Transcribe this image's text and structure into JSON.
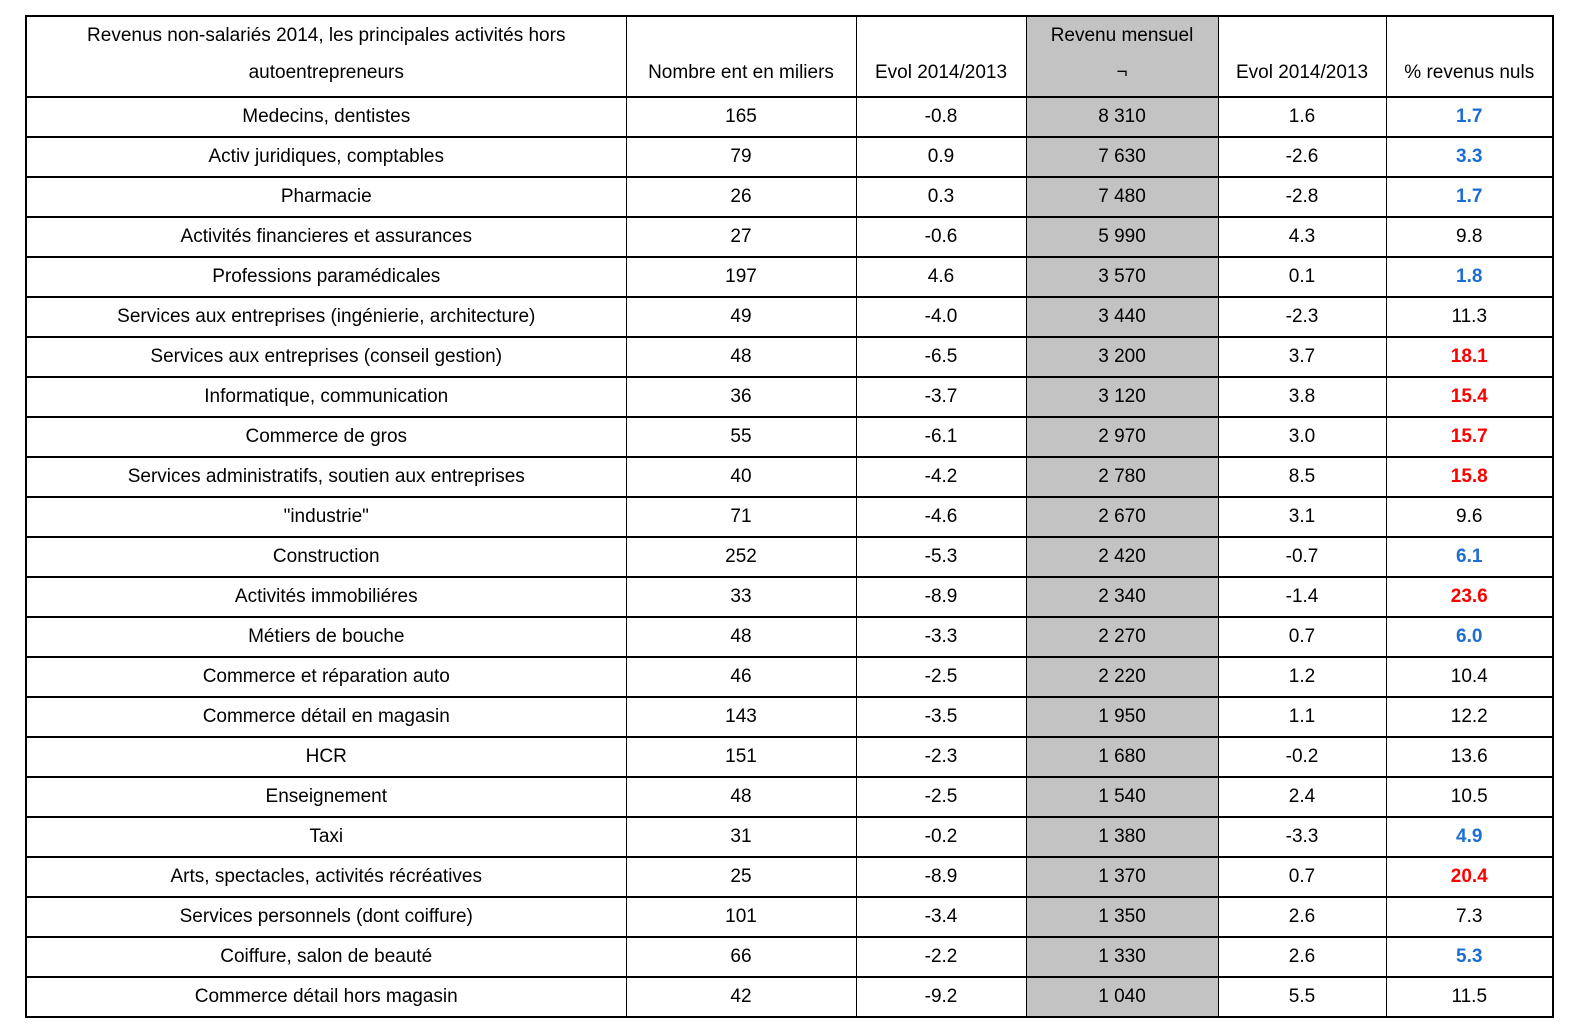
{
  "header": {
    "activity": "Revenus non-salariés 2014, les principales activités hors autoentrepreneurs",
    "nombre": "Nombre ent en miliers",
    "evol1": "Evol 2014/2013",
    "revenu_line1": "Revenu mensuel",
    "revenu_line2": "¬",
    "evol2": "Evol 2014/2013",
    "pct": "% revenus nuls"
  },
  "colors": {
    "highlight_bg": "#c3c3c3",
    "pct_blue": "#1d6ed2",
    "pct_red": "#fe0000",
    "text": "#000000",
    "border": "#000000"
  },
  "chart_data": {
    "type": "table",
    "title": "Revenus non-salariés 2014, les principales activités hors autoentrepreneurs",
    "columns": [
      "Revenus non-salariés 2014, les principales activités hors autoentrepreneurs",
      "Nombre ent en miliers",
      "Evol 2014/2013",
      "Revenu mensuel ¬",
      "Evol 2014/2013",
      "% revenus nuls"
    ],
    "highlight_column": "Revenu mensuel ¬",
    "rows": [
      [
        "Medecins, dentistes",
        "165",
        "-0.8",
        "8 310",
        "1.6",
        "1.7"
      ],
      [
        "Activ juridiques, comptables",
        "79",
        "0.9",
        "7 630",
        "-2.6",
        "3.3"
      ],
      [
        "Pharmacie",
        "26",
        "0.3",
        "7 480",
        "-2.8",
        "1.7"
      ],
      [
        "Activités financieres et assurances",
        "27",
        "-0.6",
        "5 990",
        "4.3",
        "9.8"
      ],
      [
        "Professions paramédicales",
        "197",
        "4.6",
        "3 570",
        "0.1",
        "1.8"
      ],
      [
        "Services aux entreprises (ingénierie, architecture)",
        "49",
        "-4.0",
        "3 440",
        "-2.3",
        "11.3"
      ],
      [
        "Services aux entreprises (conseil gestion)",
        "48",
        "-6.5",
        "3 200",
        "3.7",
        "18.1"
      ],
      [
        "Informatique, communication",
        "36",
        "-3.7",
        "3 120",
        "3.8",
        "15.4"
      ],
      [
        "Commerce de gros",
        "55",
        "-6.1",
        "2 970",
        "3.0",
        "15.7"
      ],
      [
        "Services administratifs, soutien aux entreprises",
        "40",
        "-4.2",
        "2 780",
        "8.5",
        "15.8"
      ],
      [
        "\"industrie\"",
        "71",
        "-4.6",
        "2 670",
        "3.1",
        "9.6"
      ],
      [
        "Construction",
        "252",
        "-5.3",
        "2 420",
        "-0.7",
        "6.1"
      ],
      [
        "Activités immobiliéres",
        "33",
        "-8.9",
        "2 340",
        "-1.4",
        "23.6"
      ],
      [
        "Métiers de bouche",
        "48",
        "-3.3",
        "2 270",
        "0.7",
        "6.0"
      ],
      [
        "Commerce et réparation auto",
        "46",
        "-2.5",
        "2 220",
        "1.2",
        "10.4"
      ],
      [
        "Commerce détail en magasin",
        "143",
        "-3.5",
        "1 950",
        "1.1",
        "12.2"
      ],
      [
        "HCR",
        "151",
        "-2.3",
        "1 680",
        "-0.2",
        "13.6"
      ],
      [
        "Enseignement",
        "48",
        "-2.5",
        "1 540",
        "2.4",
        "10.5"
      ],
      [
        "Taxi",
        "31",
        "-0.2",
        "1 380",
        "-3.3",
        "4.9"
      ],
      [
        "Arts, spectacles, activités récréatives",
        "25",
        "-8.9",
        "1 370",
        "0.7",
        "20.4"
      ],
      [
        "Services personnels (dont coiffure)",
        "101",
        "-3.4",
        "1 350",
        "2.6",
        "7.3"
      ],
      [
        "Coiffure, salon de beauté",
        "66",
        "-2.2",
        "1 330",
        "2.6",
        "5.3"
      ],
      [
        "Commerce détail hors magasin",
        "42",
        "-9.2",
        "1 040",
        "5.5",
        "11.5"
      ]
    ],
    "pct_value_colors": [
      "blue",
      "blue",
      "blue",
      "black",
      "blue",
      "black",
      "red",
      "red",
      "red",
      "red",
      "black",
      "blue",
      "red",
      "blue",
      "black",
      "black",
      "black",
      "black",
      "blue",
      "red",
      "black",
      "blue",
      "black"
    ]
  }
}
